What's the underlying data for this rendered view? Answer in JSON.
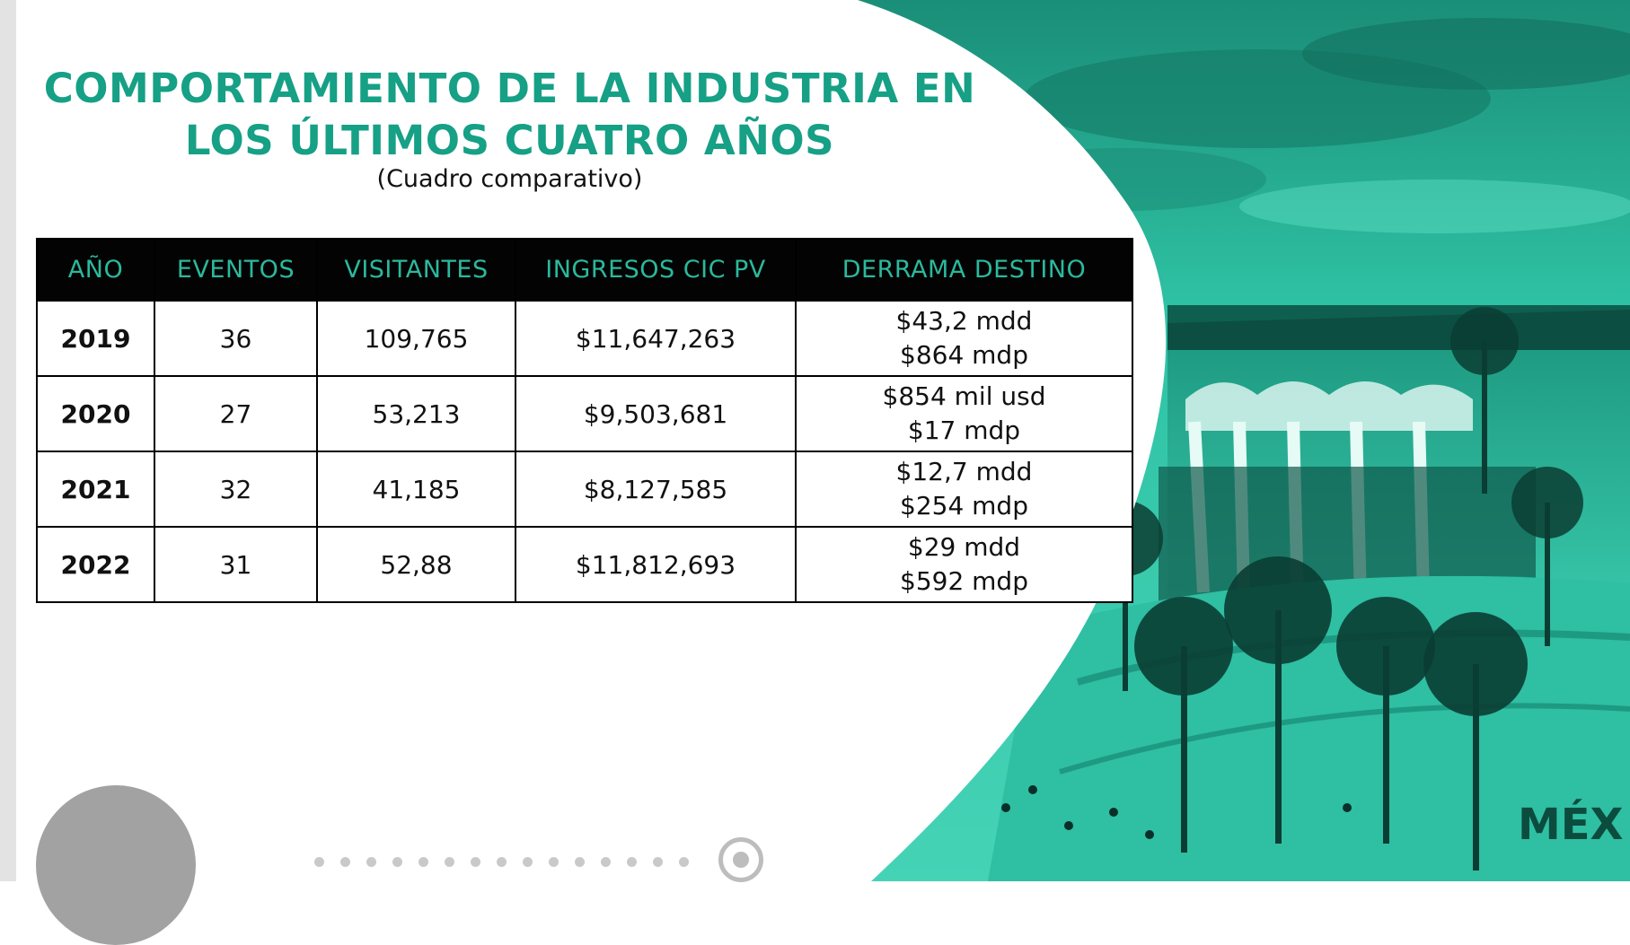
{
  "slide": {
    "title_line1": "COMPORTAMIENTO DE LA INDUSTRIA EN",
    "title_line2": "LOS ÚLTIMOS CUATRO AÑOS",
    "subtitle": "(Cuadro comparativo)"
  },
  "table": {
    "headers": [
      "AÑO",
      "EVENTOS",
      "VISITANTES",
      "INGRESOS CIC PV",
      "DERRAMA DESTINO"
    ],
    "rows": [
      {
        "year": "2019",
        "eventos": "36",
        "visitantes": "109,765",
        "ingresos": "$11,647,263",
        "derrama_1": "$43,2 mdd",
        "derrama_2": "$864 mdp"
      },
      {
        "year": "2020",
        "eventos": "27",
        "visitantes": "53,213",
        "ingresos": "$9,503,681",
        "derrama_1": "$854 mil usd",
        "derrama_2": "$17 mdp"
      },
      {
        "year": "2021",
        "eventos": "32",
        "visitantes": "41,185",
        "ingresos": "$8,127,585",
        "derrama_1": "$12,7 mdd",
        "derrama_2": "$254 mdp"
      },
      {
        "year": "2022",
        "eventos": "31",
        "visitantes": "52,88",
        "ingresos": "$11,812,693",
        "derrama_1": "$29 mdd",
        "derrama_2": "$592 mdp"
      }
    ]
  },
  "photo": {
    "sign_text": "MÉX",
    "tint_color": "#22b89a"
  },
  "pager": {
    "dot_count": 15
  }
}
